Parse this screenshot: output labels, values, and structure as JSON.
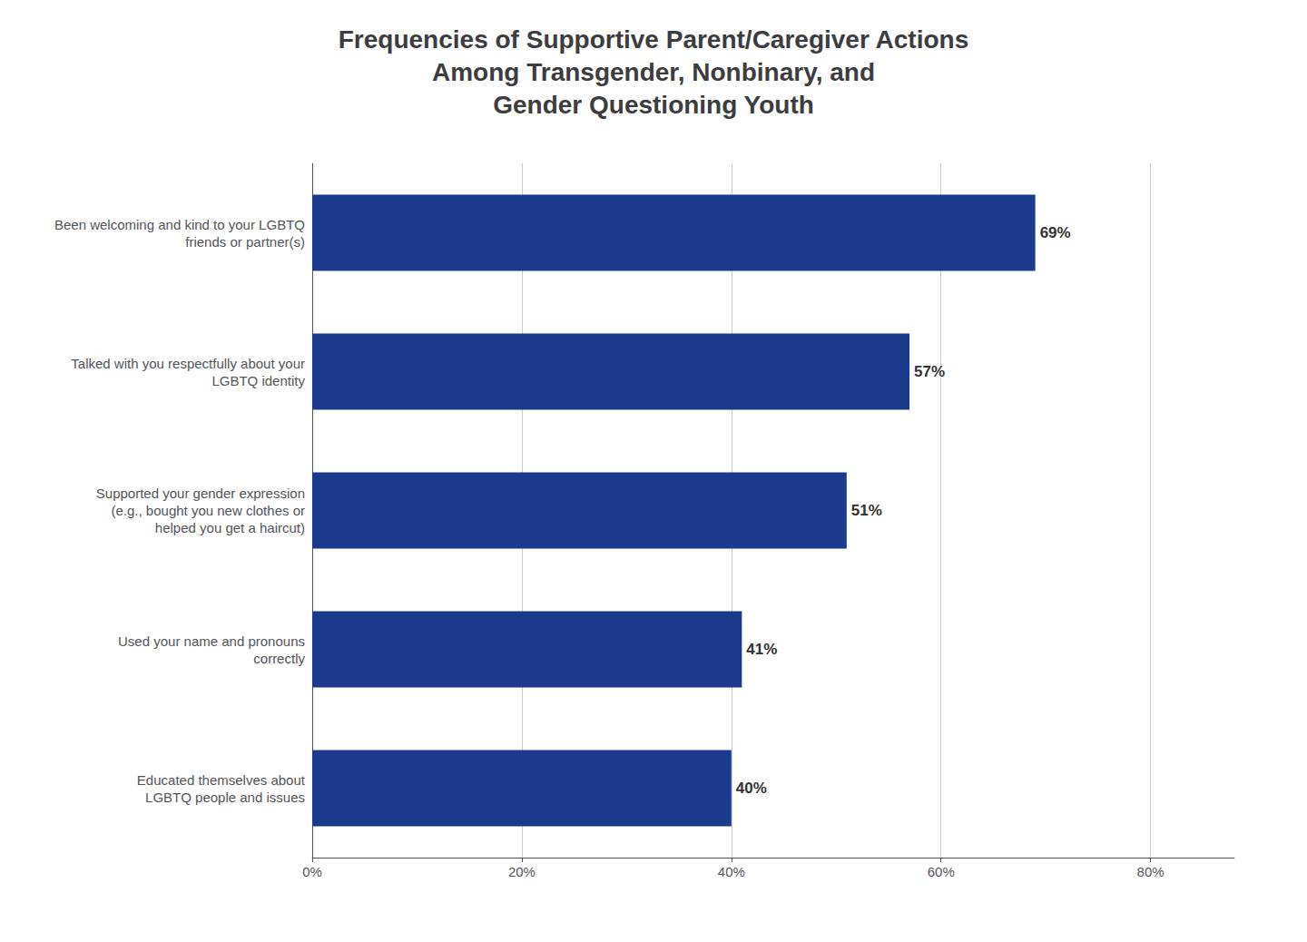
{
  "chart_data": {
    "type": "bar",
    "orientation": "horizontal",
    "title": "Frequencies of Supportive Parent/Caregiver Actions\nAmong Transgender, Nonbinary, and\nGender Questioning Youth",
    "categories": [
      "Educated themselves about\nLGBTQ people and issues",
      "Used your name and pronouns\ncorrectly",
      "Supported your gender expression\n(e.g., bought you new clothes or\nhelped you get a haircut)",
      "Talked with you respectfully about your\nLGBTQ identity",
      "Been welcoming and kind to your LGBTQ\nfriends or partner(s)"
    ],
    "values": [
      40,
      41,
      51,
      57,
      69
    ],
    "value_labels": [
      "40%",
      "41%",
      "51%",
      "57%",
      "69%"
    ],
    "data_labels": true,
    "color": "#1a3a8c",
    "xlim": [
      0,
      88
    ],
    "xticks": [
      {
        "value": 0,
        "label": "0%"
      },
      {
        "value": 20,
        "label": "20%"
      },
      {
        "value": 40,
        "label": "40%"
      },
      {
        "value": 60,
        "label": "60%"
      },
      {
        "value": 80,
        "label": "80%"
      }
    ],
    "grid": true
  }
}
